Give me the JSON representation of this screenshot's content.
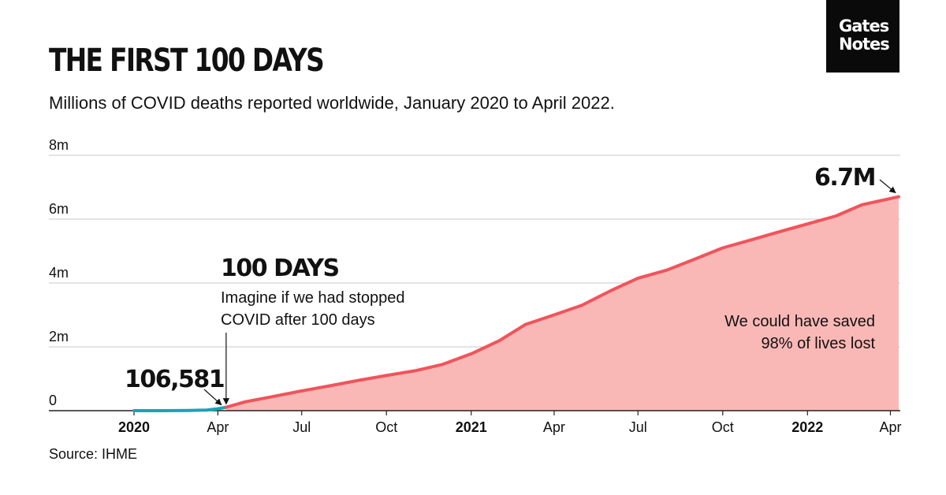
{
  "header": {
    "title": "THE FIRST 100 DAYS",
    "subtitle": "Millions of COVID deaths reported worldwide, January 2020 to April 2022."
  },
  "logo": {
    "line1": "Gates",
    "line2": "Notes"
  },
  "source": "Source: IHME",
  "colors": {
    "early_line": "#1aa3b5",
    "main_line": "#f0545c",
    "area_fill": "#f9b8b6",
    "grid": "#c8c8c8",
    "axis": "#222222"
  },
  "annotations": {
    "hundred_days_title": "100 DAYS",
    "hundred_days_line1": "Imagine if we had stopped",
    "hundred_days_line2": "COVID after 100 days",
    "start_value": "106,581",
    "end_value": "6.7M",
    "saved_line1": "We could have saved",
    "saved_line2": "98% of lives lost"
  },
  "chart_data": {
    "type": "area",
    "ylim": [
      0,
      8
    ],
    "yticks": [
      {
        "v": 0,
        "label": "0"
      },
      {
        "v": 2,
        "label": "2m"
      },
      {
        "v": 4,
        "label": "4m"
      },
      {
        "v": 6,
        "label": "6m"
      },
      {
        "v": 8,
        "label": "8m"
      }
    ],
    "xlim": [
      "2020-01-01",
      "2022-04-10"
    ],
    "xticks": [
      {
        "date": "2020-01-01",
        "label": "2020",
        "bold": true
      },
      {
        "date": "2020-04-01",
        "label": "Apr",
        "bold": false
      },
      {
        "date": "2020-07-01",
        "label": "Jul",
        "bold": false
      },
      {
        "date": "2020-10-01",
        "label": "Oct",
        "bold": false
      },
      {
        "date": "2021-01-01",
        "label": "2021",
        "bold": true
      },
      {
        "date": "2021-04-01",
        "label": "Apr",
        "bold": false
      },
      {
        "date": "2021-07-01",
        "label": "Jul",
        "bold": false
      },
      {
        "date": "2021-10-01",
        "label": "Oct",
        "bold": false
      },
      {
        "date": "2022-01-01",
        "label": "2022",
        "bold": true
      },
      {
        "date": "2022-04-01",
        "label": "Apr",
        "bold": false
      }
    ],
    "series": [
      {
        "segment": "first-100-days",
        "points": [
          [
            "2020-01-01",
            0.0
          ],
          [
            "2020-02-01",
            0.001
          ],
          [
            "2020-03-01",
            0.005
          ],
          [
            "2020-03-20",
            0.02
          ],
          [
            "2020-04-01",
            0.06
          ],
          [
            "2020-04-10",
            0.107
          ]
        ]
      },
      {
        "segment": "after-100-days",
        "points": [
          [
            "2020-04-10",
            0.107
          ],
          [
            "2020-05-01",
            0.28
          ],
          [
            "2020-06-01",
            0.45
          ],
          [
            "2020-07-01",
            0.62
          ],
          [
            "2020-08-01",
            0.78
          ],
          [
            "2020-09-01",
            0.95
          ],
          [
            "2020-10-01",
            1.1
          ],
          [
            "2020-11-01",
            1.25
          ],
          [
            "2020-12-01",
            1.45
          ],
          [
            "2021-01-01",
            1.78
          ],
          [
            "2021-02-01",
            2.2
          ],
          [
            "2021-03-01",
            2.7
          ],
          [
            "2021-04-01",
            3.0
          ],
          [
            "2021-05-01",
            3.3
          ],
          [
            "2021-06-01",
            3.75
          ],
          [
            "2021-07-01",
            4.15
          ],
          [
            "2021-08-01",
            4.4
          ],
          [
            "2021-09-01",
            4.75
          ],
          [
            "2021-10-01",
            5.1
          ],
          [
            "2021-11-01",
            5.35
          ],
          [
            "2021-12-01",
            5.6
          ],
          [
            "2022-01-01",
            5.85
          ],
          [
            "2022-02-01",
            6.1
          ],
          [
            "2022-03-01",
            6.45
          ],
          [
            "2022-04-10",
            6.7
          ]
        ]
      }
    ]
  }
}
